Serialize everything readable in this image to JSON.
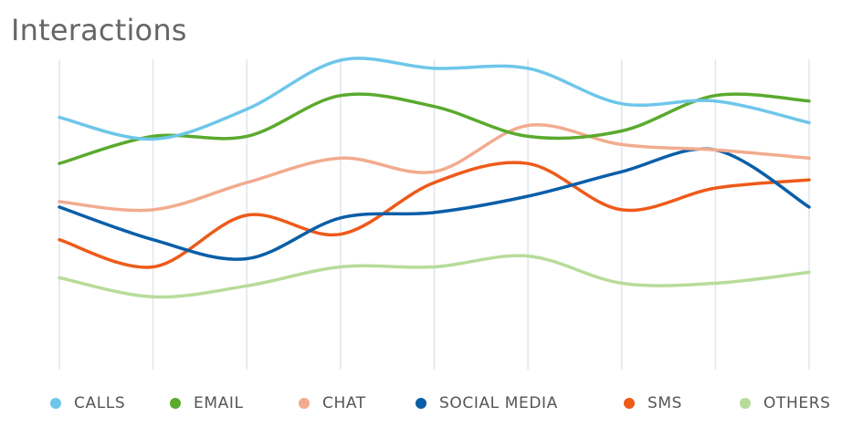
{
  "title": "Interactions",
  "chart_data": {
    "type": "line",
    "title": "Interactions",
    "xlabel": "",
    "ylabel": "",
    "x_count": 9,
    "ylim": [
      0,
      100
    ],
    "grid": {
      "vertical": true,
      "horizontal": false
    },
    "legend_position": "bottom",
    "series": [
      {
        "name": "CALLS",
        "color": "#6ec6ea",
        "values": [
          79,
          71,
          82,
          100,
          97,
          97,
          84,
          85,
          77
        ]
      },
      {
        "name": "EMAIL",
        "color": "#5aaa2e",
        "values": [
          62,
          72,
          72,
          87,
          83,
          72,
          74,
          87,
          85
        ]
      },
      {
        "name": "CHAT",
        "color": "#f2ab8e",
        "values": [
          48,
          45,
          55,
          64,
          59,
          76,
          69,
          67,
          64
        ]
      },
      {
        "name": "SOCIAL MEDIA",
        "color": "#0a5ea8",
        "values": [
          46,
          34,
          27,
          42,
          44,
          50,
          59,
          67,
          46
        ]
      },
      {
        "name": "SMS",
        "color": "#ee5a1a",
        "values": [
          34,
          24,
          43,
          36,
          55,
          62,
          45,
          53,
          56
        ]
      },
      {
        "name": "OTHERS",
        "color": "#b7dc9a",
        "values": [
          20,
          13,
          17,
          24,
          24,
          28,
          18,
          18,
          22
        ]
      }
    ]
  }
}
